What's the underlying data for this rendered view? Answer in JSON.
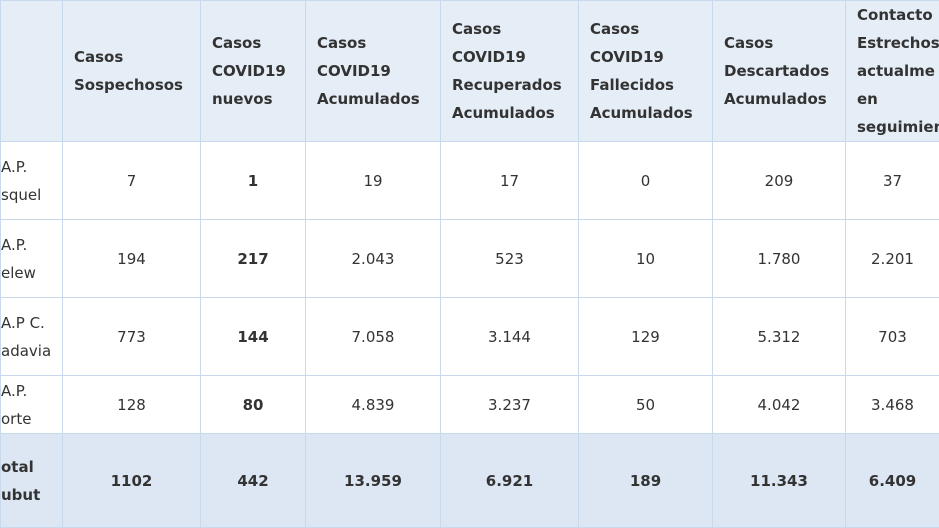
{
  "table": {
    "header": [
      "",
      "Casos\nSospechosos",
      "Casos\nCOVID19\nnuevos",
      "Casos\nCOVID19\nAcumulados",
      "Casos\nCOVID19\nRecuperados\nAcumulados",
      "Casos\nCOVID19\nFallecidos\nAcumulados",
      "Casos\nDescartados\nAcumulados",
      "Contacto\nEstrechos\nactualme\nen\nseguimien"
    ],
    "rows": [
      [
        "A.P.\nsquel",
        "7",
        "1",
        "19",
        "17",
        "0",
        "209",
        "37"
      ],
      [
        "A.P.\nelew",
        "194",
        "217",
        "2.043",
        "523",
        "10",
        "1.780",
        "2.201"
      ],
      [
        "A.P C.\nadavia",
        "773",
        "144",
        "7.058",
        "3.144",
        "129",
        "5.312",
        "703"
      ],
      [
        "A.P.\norte",
        "128",
        "80",
        "4.839",
        "3.237",
        "50",
        "4.042",
        "3.468"
      ],
      [
        "otal\nubut",
        "1102",
        "442",
        "13.959",
        "6.921",
        "189",
        "11.343",
        "6.409"
      ]
    ]
  }
}
